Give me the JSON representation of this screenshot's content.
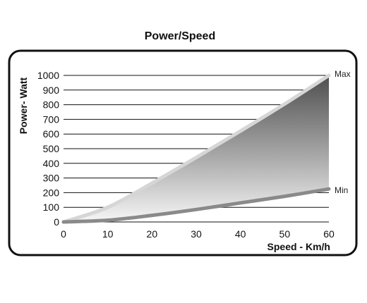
{
  "chart_data": {
    "type": "area",
    "title": "Power/Speed",
    "xlabel": "Speed - Km/h",
    "ylabel": "Power- Watt",
    "x_ticks": [
      0,
      10,
      20,
      30,
      40,
      50,
      60
    ],
    "y_ticks": [
      0,
      100,
      200,
      300,
      400,
      500,
      600,
      700,
      800,
      900,
      1000
    ],
    "xlim": [
      0,
      60
    ],
    "ylim": [
      0,
      1000
    ],
    "grid": "horizontal",
    "series": [
      {
        "name": "Max",
        "x": [
          0,
          10,
          20,
          30,
          40,
          50,
          60
        ],
        "y": [
          0,
          100,
          265,
          440,
          620,
          805,
          1000
        ]
      },
      {
        "name": "Min",
        "x": [
          0,
          10,
          20,
          30,
          40,
          50,
          60
        ],
        "y": [
          0,
          12,
          45,
          85,
          130,
          175,
          225
        ]
      }
    ],
    "colors": {
      "max_line": "#d6d6d6",
      "min_line": "#8a8a8a",
      "fill_dark": "#5a5a5a",
      "fill_light": "#f4f4f4",
      "frame": "#111111",
      "grid": "#111111"
    }
  }
}
